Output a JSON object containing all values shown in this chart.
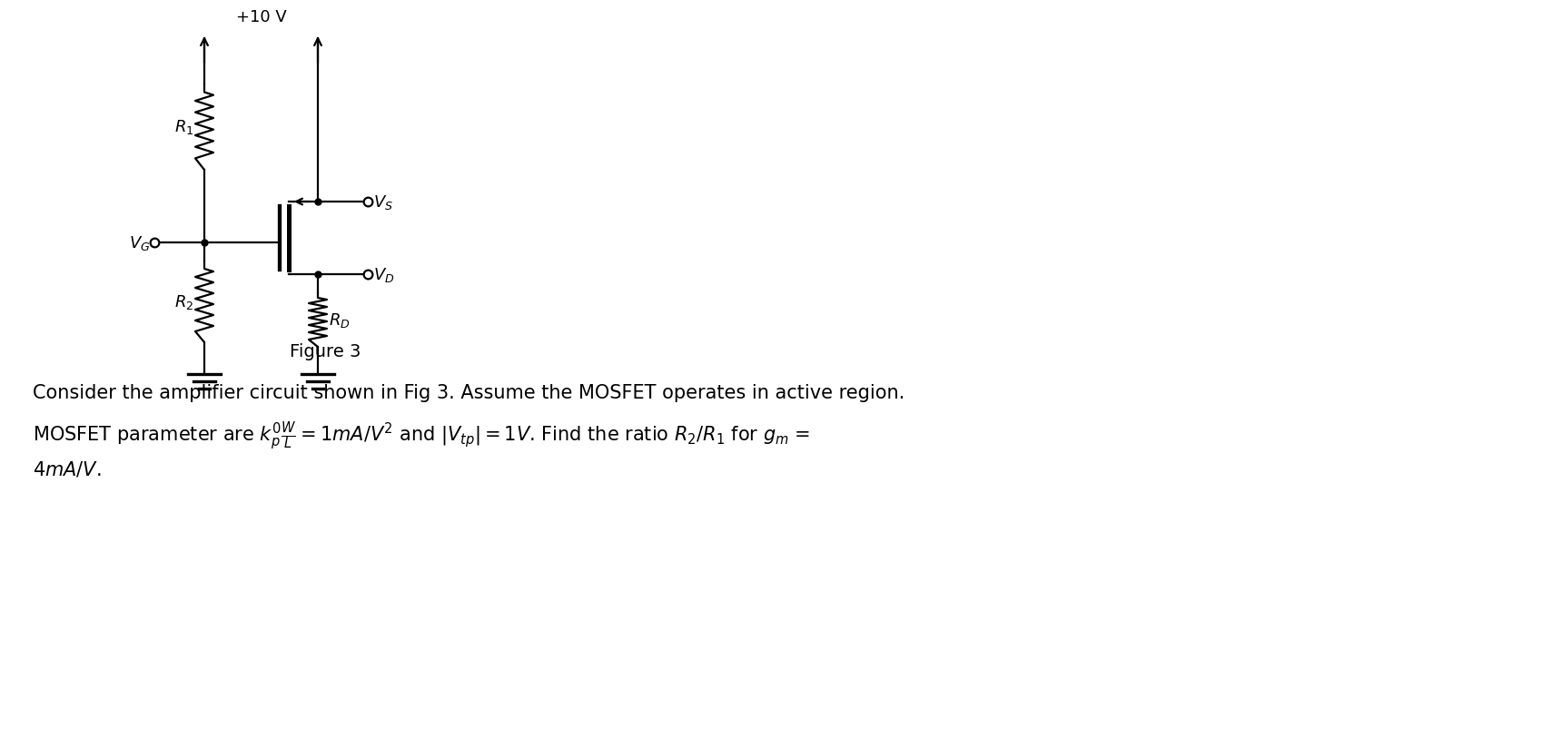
{
  "fig_width": 17.0,
  "fig_height": 8.03,
  "dpi": 100,
  "bg_color": "#ffffff",
  "line_color": "#000000",
  "line_width": 1.6,
  "circuit_title": "Figure 3",
  "text_line1": "Consider the amplifier circuit shown in Fig 3. Assume the MOSFET operates in active region.",
  "text_line2": "MOSFET parameter are $k_p^{\\prime}\\frac{W}{L} = 1mA/V^2$ and $|V_{tp}| = 1V$. Find the ratio $R_2/R_1$ for $g_m$ =",
  "text_line3": "$4mA/V$.",
  "supply_label": "+10 V",
  "vg_label": "$V_G$",
  "vs_label": "$V_S$",
  "vd_label": "$V_D$",
  "r1_label": "$R_1$",
  "r2_label": "$R_2$",
  "rd_label": "$R_D$",
  "font_size_labels": 13,
  "font_size_text": 15,
  "font_size_title": 14
}
